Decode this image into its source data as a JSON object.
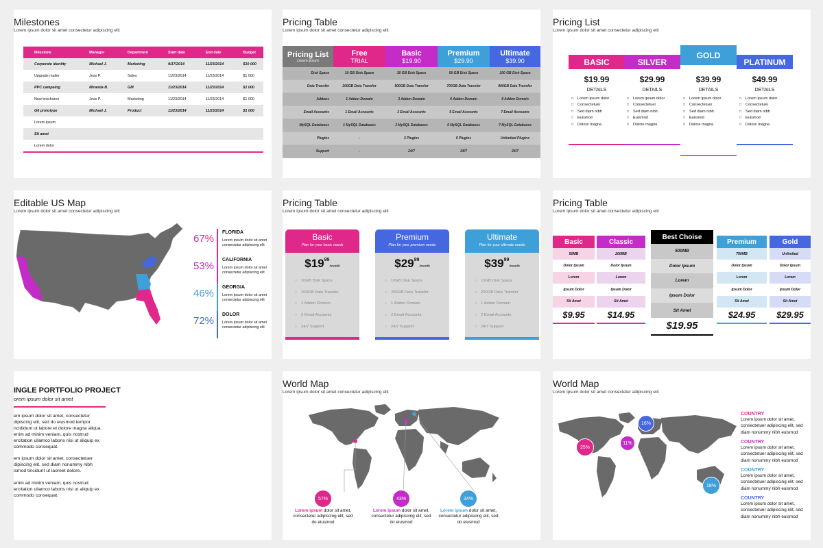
{
  "colors": {
    "pink": "#e0278a",
    "magenta": "#c42bc7",
    "blue": "#3f9fd8",
    "indigo": "#4567df",
    "gray": "#777777",
    "map": "#6a6a6a"
  },
  "lorem_sub": "Lorem ipsum dolor sit amet consectetur adipiscing elit",
  "milestones": {
    "title": "Milestones",
    "headers": [
      "Milestone",
      "Manager",
      "Department",
      "Start date",
      "End date",
      "Budget"
    ],
    "rows": [
      [
        "Corporate identity",
        "Michael J.",
        "Marketing",
        "9/17/2014",
        "11/23/2014",
        "$10 000"
      ],
      [
        "Upgrade mailer",
        "Jess P.",
        "Sales",
        "11/23/2014",
        "11/23/2014",
        "$1 000"
      ],
      [
        "PPC campaing",
        "Miranda B.",
        "GM",
        "11/23/2014",
        "11/23/2014",
        "$1 000"
      ],
      [
        "New brochures",
        "Jess P.",
        "Marketing",
        "11/23/2014",
        "11/23/2014",
        "$1 000"
      ],
      [
        "G6 prototype",
        "Michael J.",
        "Product",
        "11/23/2014",
        "11/23/2014",
        "$1 000"
      ],
      [
        "Lorem ipsum",
        "",
        "",
        "",
        "",
        ""
      ],
      [
        "Sit amet",
        "",
        "",
        "",
        "",
        ""
      ],
      [
        "Lorem dolor",
        "",
        "",
        "",
        "",
        ""
      ]
    ]
  },
  "pricing1": {
    "title": "Pricing Table",
    "corner": {
      "name": "Pricing List",
      "sub": "Lorem ipsum"
    },
    "plans": [
      {
        "name": "Free",
        "price": "TRIAL",
        "color": "#e0278a"
      },
      {
        "name": "Basic",
        "price": "$19.90",
        "color": "#c42bc7"
      },
      {
        "name": "Premium",
        "price": "$29.90",
        "color": "#3f9fd8"
      },
      {
        "name": "Ultimate",
        "price": "$39.90",
        "color": "#4567df"
      }
    ],
    "rows": [
      {
        "label": "Disk Space",
        "vals": [
          "10 GB Disk Space",
          "30 GB Disk Space",
          "50 GB Disk Space",
          "100 GB Disk Space"
        ]
      },
      {
        "label": "Data Transfer",
        "vals": [
          "200GB Data Transfer",
          "500GB Data Transfer",
          "700GB Data Transfer",
          "900GB Data Transfer"
        ]
      },
      {
        "label": "Addons",
        "vals": [
          "1 Addon Domain",
          "3 Addon Domain",
          "6 Addon Domain",
          "9 Addon Domain"
        ]
      },
      {
        "label": "Email Accounts",
        "vals": [
          "1 Email Accounts",
          "3 Email Accounts",
          "5 Email Accounts",
          "7 Email Accounts"
        ]
      },
      {
        "label": "MySQL Databases",
        "vals": [
          "1 MySQL Databases",
          "3 MySQL Databases",
          "5 MySQL Databases",
          "7 MySQL Databases"
        ]
      },
      {
        "label": "Plugins",
        "vals": [
          "-",
          "3 Plugins",
          "5 Plugins",
          "Unlimited Plugins"
        ]
      },
      {
        "label": "Support",
        "vals": [
          "-",
          "24/7",
          "24/7",
          "24/7"
        ]
      }
    ]
  },
  "pricelist": {
    "title": "Pricing List",
    "plans": [
      {
        "name": "BASIC",
        "price": "$19.99",
        "color": "#e0278a"
      },
      {
        "name": "SILVER",
        "price": "$29.99",
        "color": "#c42bc7"
      },
      {
        "name": "GOLD",
        "price": "$39.99",
        "color": "#3f9fd8"
      },
      {
        "name": "PLATINUM",
        "price": "$49.99",
        "color": "#4567df"
      }
    ],
    "details": "DETAILS",
    "features": [
      "Lorem ipsum dolor",
      "Consectetuer",
      "Sed diam nibh",
      "Euismod",
      "Dolore magna"
    ]
  },
  "usmap": {
    "title": "Editable US Map",
    "stats": [
      {
        "pct": "67%",
        "state": "FLORIDA",
        "color": "#e0278a"
      },
      {
        "pct": "53%",
        "state": "CALIFORNIA",
        "color": "#c42bc7"
      },
      {
        "pct": "46%",
        "state": "GEORGIA",
        "color": "#3f9fd8"
      },
      {
        "pct": "72%",
        "state": "DOLOR",
        "color": "#4567df"
      }
    ],
    "desc": "Lorem ipsum dolor sit amet consectetur adipiscing elit"
  },
  "pricing2": {
    "title": "Pricing Table",
    "cards": [
      {
        "name": "Basic",
        "sub": "Plan for your basic needs",
        "price": "$19",
        "cents": "99",
        "color": "#e0278a"
      },
      {
        "name": "Premium",
        "sub": "Plan for your premium needs",
        "price": "$29",
        "cents": "99",
        "color": "#4567df"
      },
      {
        "name": "Ultimate",
        "sub": "Plan for your ultimate needs",
        "price": "$39",
        "cents": "99",
        "color": "#3f9fd8"
      }
    ],
    "per": "/month",
    "features": [
      "10GB Disk Space",
      "200GB Data Transfer",
      "1 Addon Domain",
      "2 Email Accounts",
      "24/7 Support"
    ]
  },
  "pricing3": {
    "title": "Pricing Table",
    "cols": [
      {
        "name": "Basic",
        "price": "$9.95",
        "color": "#e0278a",
        "light": "#f7d3e6",
        "cells": [
          "50MB",
          "Dolor Ipsum",
          "Lorem",
          "Ipsum Dolor",
          "Sit Amet"
        ]
      },
      {
        "name": "Classic",
        "price": "$14.95",
        "color": "#c42bc7",
        "light": "#ecd3ee",
        "cells": [
          "200MB",
          "Dolor Ipsum",
          "Lorem",
          "Ipsum Dolor",
          "Sit Amet"
        ]
      },
      {
        "name": "Best Choise",
        "price": "$19.95",
        "color": "#000000",
        "light": "#d8d8d8",
        "cells": [
          "500MB",
          "Dolor Ipsum",
          "Lorem",
          "Ipsum Dolor",
          "Sit Amet"
        ]
      },
      {
        "name": "Premium",
        "price": "$24.95",
        "color": "#3f9fd8",
        "light": "#d3e6f4",
        "cells": [
          "750MB",
          "Dolor Ipsum",
          "Lorem",
          "Ipsum Dolor",
          "Sit Amet"
        ]
      },
      {
        "name": "Gold",
        "price": "$29.95",
        "color": "#4567df",
        "light": "#d6dcf6",
        "cells": [
          "Unlimited",
          "Dolor Ipsum",
          "Lorem",
          "Ipsum Dolor",
          "Sit Amet"
        ]
      }
    ]
  },
  "portfolio": {
    "title": "INGLE PORTFOLIO PROJECT",
    "sub": "orem ipsum dolor sit amet",
    "p1": [
      "em ipsum dolor sit amet, consectetur",
      "dipiscing elit, sed do eiusmod tempor",
      "ncididunt ut labore et dolore magna aliqua.",
      "enim ad minim veniam, quis nostrud",
      "ercitation ullamco laboris nisi ut aliquip ex",
      "commodo consequat."
    ],
    "p2": [
      "em ipsum dolor sit amet, consectetuer",
      "dipiscing elit, sed diam nonummy nibh",
      "ismod tincidunt ut laoreet dolore."
    ],
    "p3": [
      "enim ad minim veniam, quis nostrud",
      "ercitation ullamco laboris nisi ut aliquip ex",
      "commodo consequat."
    ]
  },
  "worldmap1": {
    "title": "World Map",
    "items": [
      {
        "pct": "57%",
        "color": "#e0278a"
      },
      {
        "pct": "43%",
        "color": "#c42bc7"
      },
      {
        "pct": "34%",
        "color": "#3f9fd8"
      }
    ],
    "cap_hl": "Lorem ipsum",
    "cap_rest": " dolor sit amet,",
    "cap_l2": "consectetur adipiscing elit, sed",
    "cap_l3": "do eiusmod"
  },
  "worldmap2": {
    "title": "World Map",
    "circles": [
      {
        "pct": "25%",
        "color": "#e0278a"
      },
      {
        "pct": "11%",
        "color": "#c42bc7"
      },
      {
        "pct": "16%",
        "color": "#4567df"
      },
      {
        "pct": "18%",
        "color": "#3f9fd8"
      }
    ],
    "items": [
      {
        "name": "COUNTRY",
        "color": "#e0278a"
      },
      {
        "name": "COUNTRY",
        "color": "#c42bc7"
      },
      {
        "name": "COUNTRY",
        "color": "#3f9fd8"
      },
      {
        "name": "COUNTRY",
        "color": "#4567df"
      }
    ],
    "desc": [
      "Lorem ipsum dolor sit amet,",
      "consectetuer adipiscing elit, sed",
      "diam nonummy nibh euismod"
    ]
  }
}
